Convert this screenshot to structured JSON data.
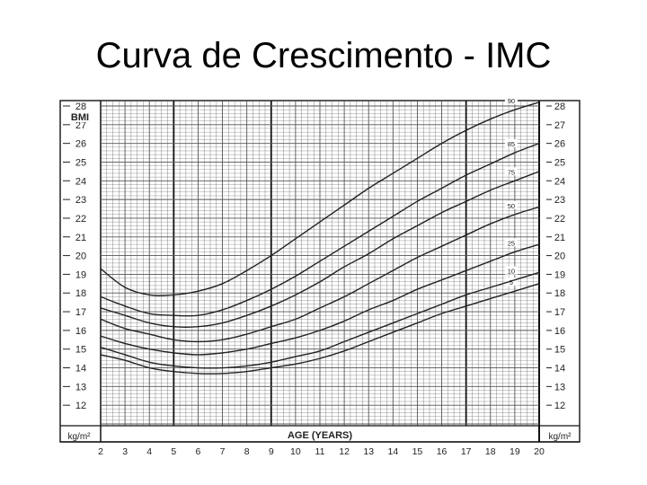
{
  "slide": {
    "title": "Curva de Crescimento - IMC"
  },
  "colors": {
    "line": "#222222",
    "grid": "#555555",
    "background": "#ffffff"
  },
  "chart_data": {
    "type": "line",
    "title": "",
    "ylabel": "BMI",
    "xlabel": "AGE (YEARS)",
    "units_left": "kg/m²",
    "units_right": "kg/m²",
    "xlim": [
      2,
      20
    ],
    "ylim": [
      11,
      28
    ],
    "x_ticks": [
      2,
      3,
      4,
      5,
      6,
      7,
      8,
      9,
      10,
      11,
      12,
      13,
      14,
      15,
      16,
      17,
      18,
      19,
      20
    ],
    "y_ticks": [
      12,
      13,
      14,
      15,
      16,
      17,
      18,
      19,
      20,
      21,
      22,
      23,
      24,
      25,
      26,
      27,
      28
    ],
    "grid": true,
    "series": [
      {
        "name": "5",
        "x": [
          2,
          3,
          4,
          5,
          6,
          7,
          8,
          9,
          10,
          11,
          12,
          13,
          14,
          15,
          16,
          17,
          18,
          19,
          20
        ],
        "y": [
          14.7,
          14.4,
          14.0,
          13.8,
          13.7,
          13.7,
          13.8,
          14.0,
          14.2,
          14.5,
          14.9,
          15.4,
          15.9,
          16.4,
          16.9,
          17.3,
          17.7,
          18.1,
          18.5
        ]
      },
      {
        "name": "10",
        "x": [
          2,
          3,
          4,
          5,
          6,
          7,
          8,
          9,
          10,
          11,
          12,
          13,
          14,
          15,
          16,
          17,
          18,
          19,
          20
        ],
        "y": [
          15.1,
          14.7,
          14.3,
          14.1,
          14.0,
          14.0,
          14.1,
          14.3,
          14.6,
          14.9,
          15.4,
          15.9,
          16.4,
          16.9,
          17.4,
          17.9,
          18.3,
          18.7,
          19.1
        ]
      },
      {
        "name": "25",
        "x": [
          2,
          3,
          4,
          5,
          6,
          7,
          8,
          9,
          10,
          11,
          12,
          13,
          14,
          15,
          16,
          17,
          18,
          19,
          20
        ],
        "y": [
          15.7,
          15.3,
          15.0,
          14.8,
          14.7,
          14.8,
          15.0,
          15.3,
          15.6,
          16.0,
          16.5,
          17.1,
          17.6,
          18.2,
          18.7,
          19.2,
          19.7,
          20.2,
          20.6
        ]
      },
      {
        "name": "50",
        "x": [
          2,
          3,
          4,
          5,
          6,
          7,
          8,
          9,
          10,
          11,
          12,
          13,
          14,
          15,
          16,
          17,
          18,
          19,
          20
        ],
        "y": [
          16.6,
          16.1,
          15.8,
          15.5,
          15.4,
          15.5,
          15.8,
          16.2,
          16.6,
          17.2,
          17.8,
          18.5,
          19.2,
          19.9,
          20.5,
          21.1,
          21.7,
          22.2,
          22.6
        ]
      },
      {
        "name": "75",
        "x": [
          2,
          3,
          4,
          5,
          6,
          7,
          8,
          9,
          10,
          11,
          12,
          13,
          14,
          15,
          16,
          17,
          18,
          19,
          20
        ],
        "y": [
          17.2,
          16.8,
          16.4,
          16.2,
          16.2,
          16.4,
          16.8,
          17.3,
          17.9,
          18.6,
          19.4,
          20.1,
          20.9,
          21.6,
          22.3,
          22.9,
          23.5,
          24.0,
          24.5
        ]
      },
      {
        "name": "85",
        "x": [
          2,
          3,
          4,
          5,
          6,
          7,
          8,
          9,
          10,
          11,
          12,
          13,
          14,
          15,
          16,
          17,
          18,
          19,
          20
        ],
        "y": [
          17.8,
          17.3,
          16.9,
          16.8,
          16.8,
          17.1,
          17.6,
          18.2,
          18.9,
          19.7,
          20.5,
          21.3,
          22.1,
          22.9,
          23.6,
          24.3,
          24.9,
          25.5,
          26.0
        ]
      },
      {
        "name": "90",
        "x": [
          2,
          3,
          4,
          5,
          6,
          7,
          8,
          9,
          10,
          11,
          12,
          13,
          14,
          15,
          16,
          17,
          18,
          19,
          20
        ],
        "y": [
          19.3,
          18.3,
          17.9,
          17.9,
          18.1,
          18.5,
          19.2,
          20.0,
          20.9,
          21.8,
          22.7,
          23.6,
          24.4,
          25.2,
          26.0,
          26.7,
          27.3,
          27.8,
          28.2
        ]
      }
    ],
    "label_x": 19
  }
}
